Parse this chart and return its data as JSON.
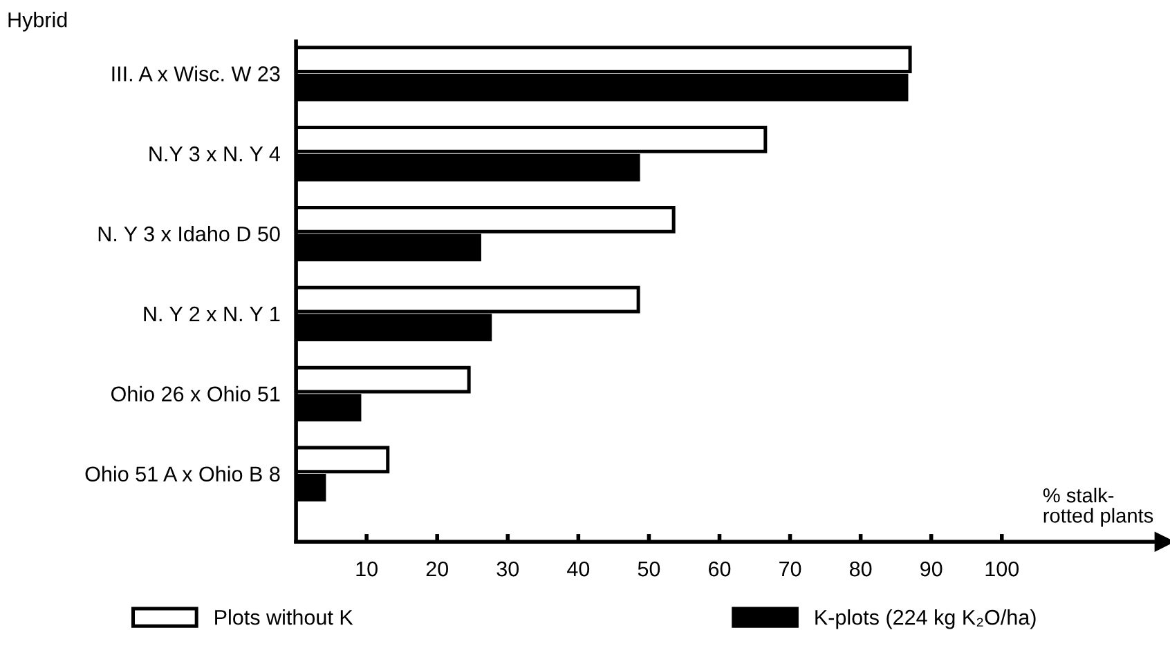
{
  "chart_data": {
    "type": "bar",
    "orientation": "horizontal",
    "ylabel": "Hybrid",
    "xlabel": "% stalk-\nrotted plants",
    "categories": [
      "III. A x Wisc. W 23",
      "N.Y 3 x N. Y 4",
      "N. Y 3 x Idaho D 50",
      "N. Y 2 x N. Y 1",
      "Ohio 26 x Ohio 51",
      "Ohio 51 A x Ohio B 8"
    ],
    "series": [
      {
        "name": "Plots without K",
        "color": "#ffffff",
        "values": [
          87,
          66.5,
          53.5,
          48.5,
          24.5,
          13
        ]
      },
      {
        "name": "K-plots (224 kg K₂O/ha)",
        "color": "#000000",
        "values": [
          86.5,
          48.5,
          26,
          27.5,
          9,
          4
        ]
      }
    ],
    "xlim": [
      0,
      123
    ],
    "xticks": [
      10,
      20,
      30,
      40,
      50,
      60,
      70,
      80,
      90,
      100
    ],
    "grid": false,
    "legend": "bottom"
  }
}
